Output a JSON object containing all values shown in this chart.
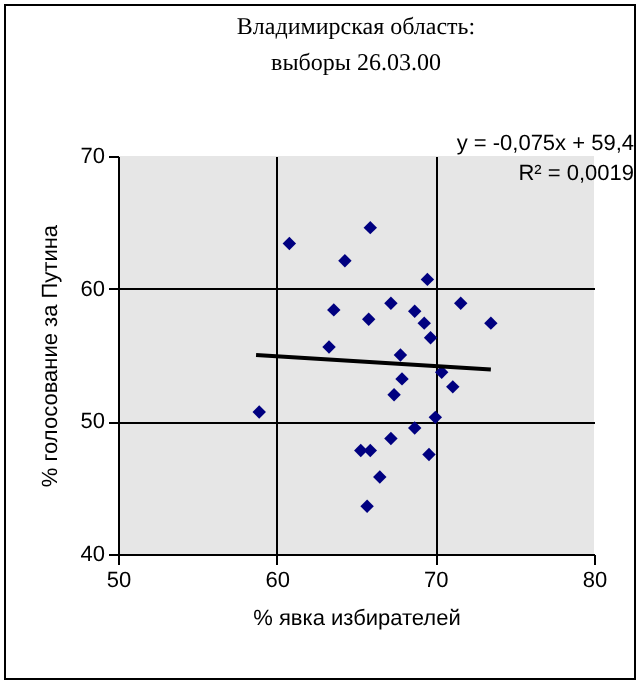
{
  "chart_data": {
    "type": "scatter",
    "title": "Владимирская область:",
    "subtitle": "выборы 26.03.00",
    "xlabel": "% явка  избирателей",
    "ylabel": "% голосование за Путина",
    "annotations": [
      "y = -0,075x + 59,4",
      "R² = 0,0019"
    ],
    "series": [
      {
        "color": "#000080",
        "marker": "diamond",
        "x": [
          60.8,
          65.9,
          64.3,
          69.5,
          63.6,
          65.8,
          67.2,
          68.7,
          69.3,
          69.7,
          71.6,
          73.5,
          63.3,
          67.8,
          70.4,
          67.9,
          71.1,
          67.4,
          58.9,
          70.0,
          68.7,
          67.2,
          65.3,
          65.9,
          69.6,
          66.5,
          65.7
        ],
        "values": [
          63.4,
          64.6,
          62.1,
          60.7,
          58.4,
          57.7,
          58.9,
          58.3,
          57.4,
          56.3,
          58.9,
          57.4,
          55.6,
          55.0,
          53.7,
          53.2,
          52.6,
          52.0,
          50.7,
          50.3,
          49.5,
          48.7,
          47.8,
          47.8,
          47.5,
          45.8,
          43.6
        ]
      },
      {
        "type": "line",
        "color": "#000000",
        "line_style": "solid",
        "x": [
          58.7,
          73.5
        ],
        "values": [
          55.0,
          53.9
        ]
      }
    ],
    "xlim": [
      50,
      80
    ],
    "ylim": [
      40,
      70
    ],
    "xticks": [
      50,
      60,
      70,
      80
    ],
    "yticks": [
      40,
      50,
      60,
      70
    ],
    "grid": true
  }
}
